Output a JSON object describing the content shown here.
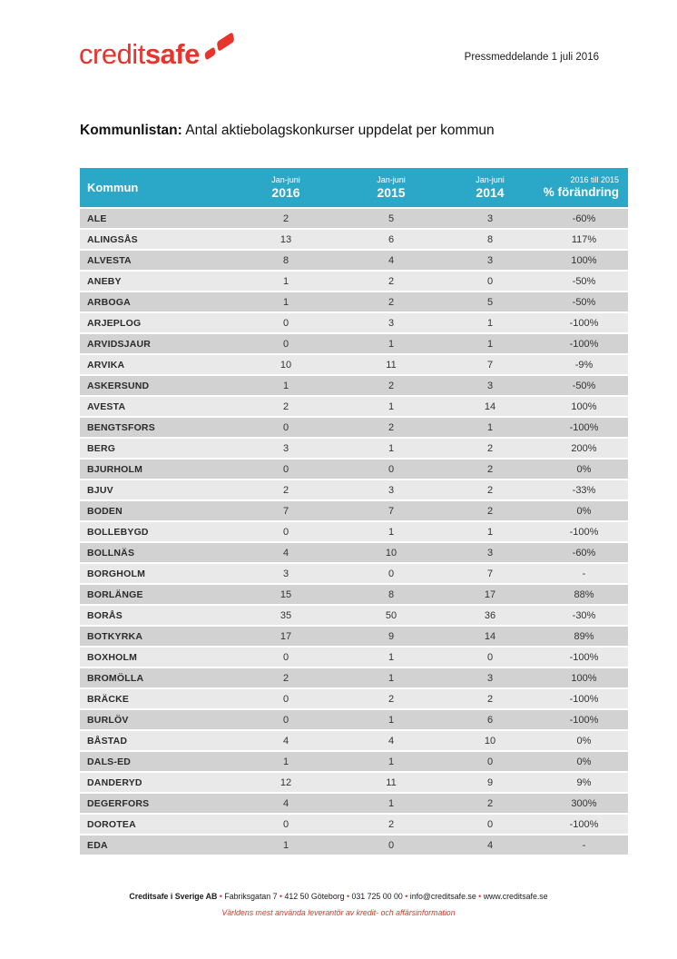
{
  "colors": {
    "brand_red": "#E5352C",
    "table_header_teal": "#2BA7C8",
    "row_dark": "#D2D2D2",
    "row_light": "#E9E9E9"
  },
  "logo": {
    "part1": "credit",
    "part2": "safe"
  },
  "header": {
    "press_label": "Pressmeddelande 1 juli 2016"
  },
  "title": {
    "bold": "Kommunlistan:",
    "rest": " Antal aktiebolagskonkurser uppdelat per kommun"
  },
  "table": {
    "columns": [
      {
        "id": "kommun",
        "label": "Kommun"
      },
      {
        "id": "jan_juni_2016",
        "top": "Jan-juni",
        "label": "2016"
      },
      {
        "id": "jan_juni_2015",
        "top": "Jan-juni",
        "label": "2015"
      },
      {
        "id": "jan_juni_2014",
        "top": "Jan-juni",
        "label": "2014"
      },
      {
        "id": "change",
        "top": "2016 till 2015",
        "label": "% förändring"
      }
    ],
    "rows": [
      {
        "kommun": "ALE",
        "jan_juni_2016": 2,
        "jan_juni_2015": 5,
        "jan_juni_2014": 3,
        "change": "-60%"
      },
      {
        "kommun": "ALINGSÅS",
        "jan_juni_2016": 13,
        "jan_juni_2015": 6,
        "jan_juni_2014": 8,
        "change": "117%"
      },
      {
        "kommun": "ALVESTA",
        "jan_juni_2016": 8,
        "jan_juni_2015": 4,
        "jan_juni_2014": 3,
        "change": "100%"
      },
      {
        "kommun": "ANEBY",
        "jan_juni_2016": 1,
        "jan_juni_2015": 2,
        "jan_juni_2014": 0,
        "change": "-50%"
      },
      {
        "kommun": "ARBOGA",
        "jan_juni_2016": 1,
        "jan_juni_2015": 2,
        "jan_juni_2014": 5,
        "change": "-50%"
      },
      {
        "kommun": "ARJEPLOG",
        "jan_juni_2016": 0,
        "jan_juni_2015": 3,
        "jan_juni_2014": 1,
        "change": "-100%"
      },
      {
        "kommun": "ARVIDSJAUR",
        "jan_juni_2016": 0,
        "jan_juni_2015": 1,
        "jan_juni_2014": 1,
        "change": "-100%"
      },
      {
        "kommun": "ARVIKA",
        "jan_juni_2016": 10,
        "jan_juni_2015": 11,
        "jan_juni_2014": 7,
        "change": "-9%"
      },
      {
        "kommun": "ASKERSUND",
        "jan_juni_2016": 1,
        "jan_juni_2015": 2,
        "jan_juni_2014": 3,
        "change": "-50%"
      },
      {
        "kommun": "AVESTA",
        "jan_juni_2016": 2,
        "jan_juni_2015": 1,
        "jan_juni_2014": 14,
        "change": "100%"
      },
      {
        "kommun": "BENGTSFORS",
        "jan_juni_2016": 0,
        "jan_juni_2015": 2,
        "jan_juni_2014": 1,
        "change": "-100%"
      },
      {
        "kommun": "BERG",
        "jan_juni_2016": 3,
        "jan_juni_2015": 1,
        "jan_juni_2014": 2,
        "change": "200%"
      },
      {
        "kommun": "BJURHOLM",
        "jan_juni_2016": 0,
        "jan_juni_2015": 0,
        "jan_juni_2014": 2,
        "change": "0%"
      },
      {
        "kommun": "BJUV",
        "jan_juni_2016": 2,
        "jan_juni_2015": 3,
        "jan_juni_2014": 2,
        "change": "-33%"
      },
      {
        "kommun": "BODEN",
        "jan_juni_2016": 7,
        "jan_juni_2015": 7,
        "jan_juni_2014": 2,
        "change": "0%"
      },
      {
        "kommun": "BOLLEBYGD",
        "jan_juni_2016": 0,
        "jan_juni_2015": 1,
        "jan_juni_2014": 1,
        "change": "-100%"
      },
      {
        "kommun": "BOLLNÄS",
        "jan_juni_2016": 4,
        "jan_juni_2015": 10,
        "jan_juni_2014": 3,
        "change": "-60%"
      },
      {
        "kommun": "BORGHOLM",
        "jan_juni_2016": 3,
        "jan_juni_2015": 0,
        "jan_juni_2014": 7,
        "change": "-"
      },
      {
        "kommun": "BORLÄNGE",
        "jan_juni_2016": 15,
        "jan_juni_2015": 8,
        "jan_juni_2014": 17,
        "change": "88%"
      },
      {
        "kommun": "BORÅS",
        "jan_juni_2016": 35,
        "jan_juni_2015": 50,
        "jan_juni_2014": 36,
        "change": "-30%"
      },
      {
        "kommun": "BOTKYRKA",
        "jan_juni_2016": 17,
        "jan_juni_2015": 9,
        "jan_juni_2014": 14,
        "change": "89%"
      },
      {
        "kommun": "BOXHOLM",
        "jan_juni_2016": 0,
        "jan_juni_2015": 1,
        "jan_juni_2014": 0,
        "change": "-100%"
      },
      {
        "kommun": "BROMÖLLA",
        "jan_juni_2016": 2,
        "jan_juni_2015": 1,
        "jan_juni_2014": 3,
        "change": "100%"
      },
      {
        "kommun": "BRÄCKE",
        "jan_juni_2016": 0,
        "jan_juni_2015": 2,
        "jan_juni_2014": 2,
        "change": "-100%"
      },
      {
        "kommun": "BURLÖV",
        "jan_juni_2016": 0,
        "jan_juni_2015": 1,
        "jan_juni_2014": 6,
        "change": "-100%"
      },
      {
        "kommun": "BÅSTAD",
        "jan_juni_2016": 4,
        "jan_juni_2015": 4,
        "jan_juni_2014": 10,
        "change": "0%"
      },
      {
        "kommun": "DALS-ED",
        "jan_juni_2016": 1,
        "jan_juni_2015": 1,
        "jan_juni_2014": 0,
        "change": "0%"
      },
      {
        "kommun": "DANDERYD",
        "jan_juni_2016": 12,
        "jan_juni_2015": 11,
        "jan_juni_2014": 9,
        "change": "9%"
      },
      {
        "kommun": "DEGERFORS",
        "jan_juni_2016": 4,
        "jan_juni_2015": 1,
        "jan_juni_2014": 2,
        "change": "300%"
      },
      {
        "kommun": "DOROTEA",
        "jan_juni_2016": 0,
        "jan_juni_2015": 2,
        "jan_juni_2014": 0,
        "change": "-100%"
      },
      {
        "kommun": "EDA",
        "jan_juni_2016": 1,
        "jan_juni_2015": 0,
        "jan_juni_2014": 4,
        "change": "-"
      }
    ]
  },
  "footer": {
    "company": "Creditsafe i Sverige AB",
    "bullet": "•",
    "segments": [
      "Fabriksgatan 7",
      "412 50 Göteborg",
      "031 725 00 00",
      "info@creditsafe.se",
      "www.creditsafe.se"
    ],
    "tagline": "Världens mest använda leverantör av kredit- och affärsinformation"
  }
}
